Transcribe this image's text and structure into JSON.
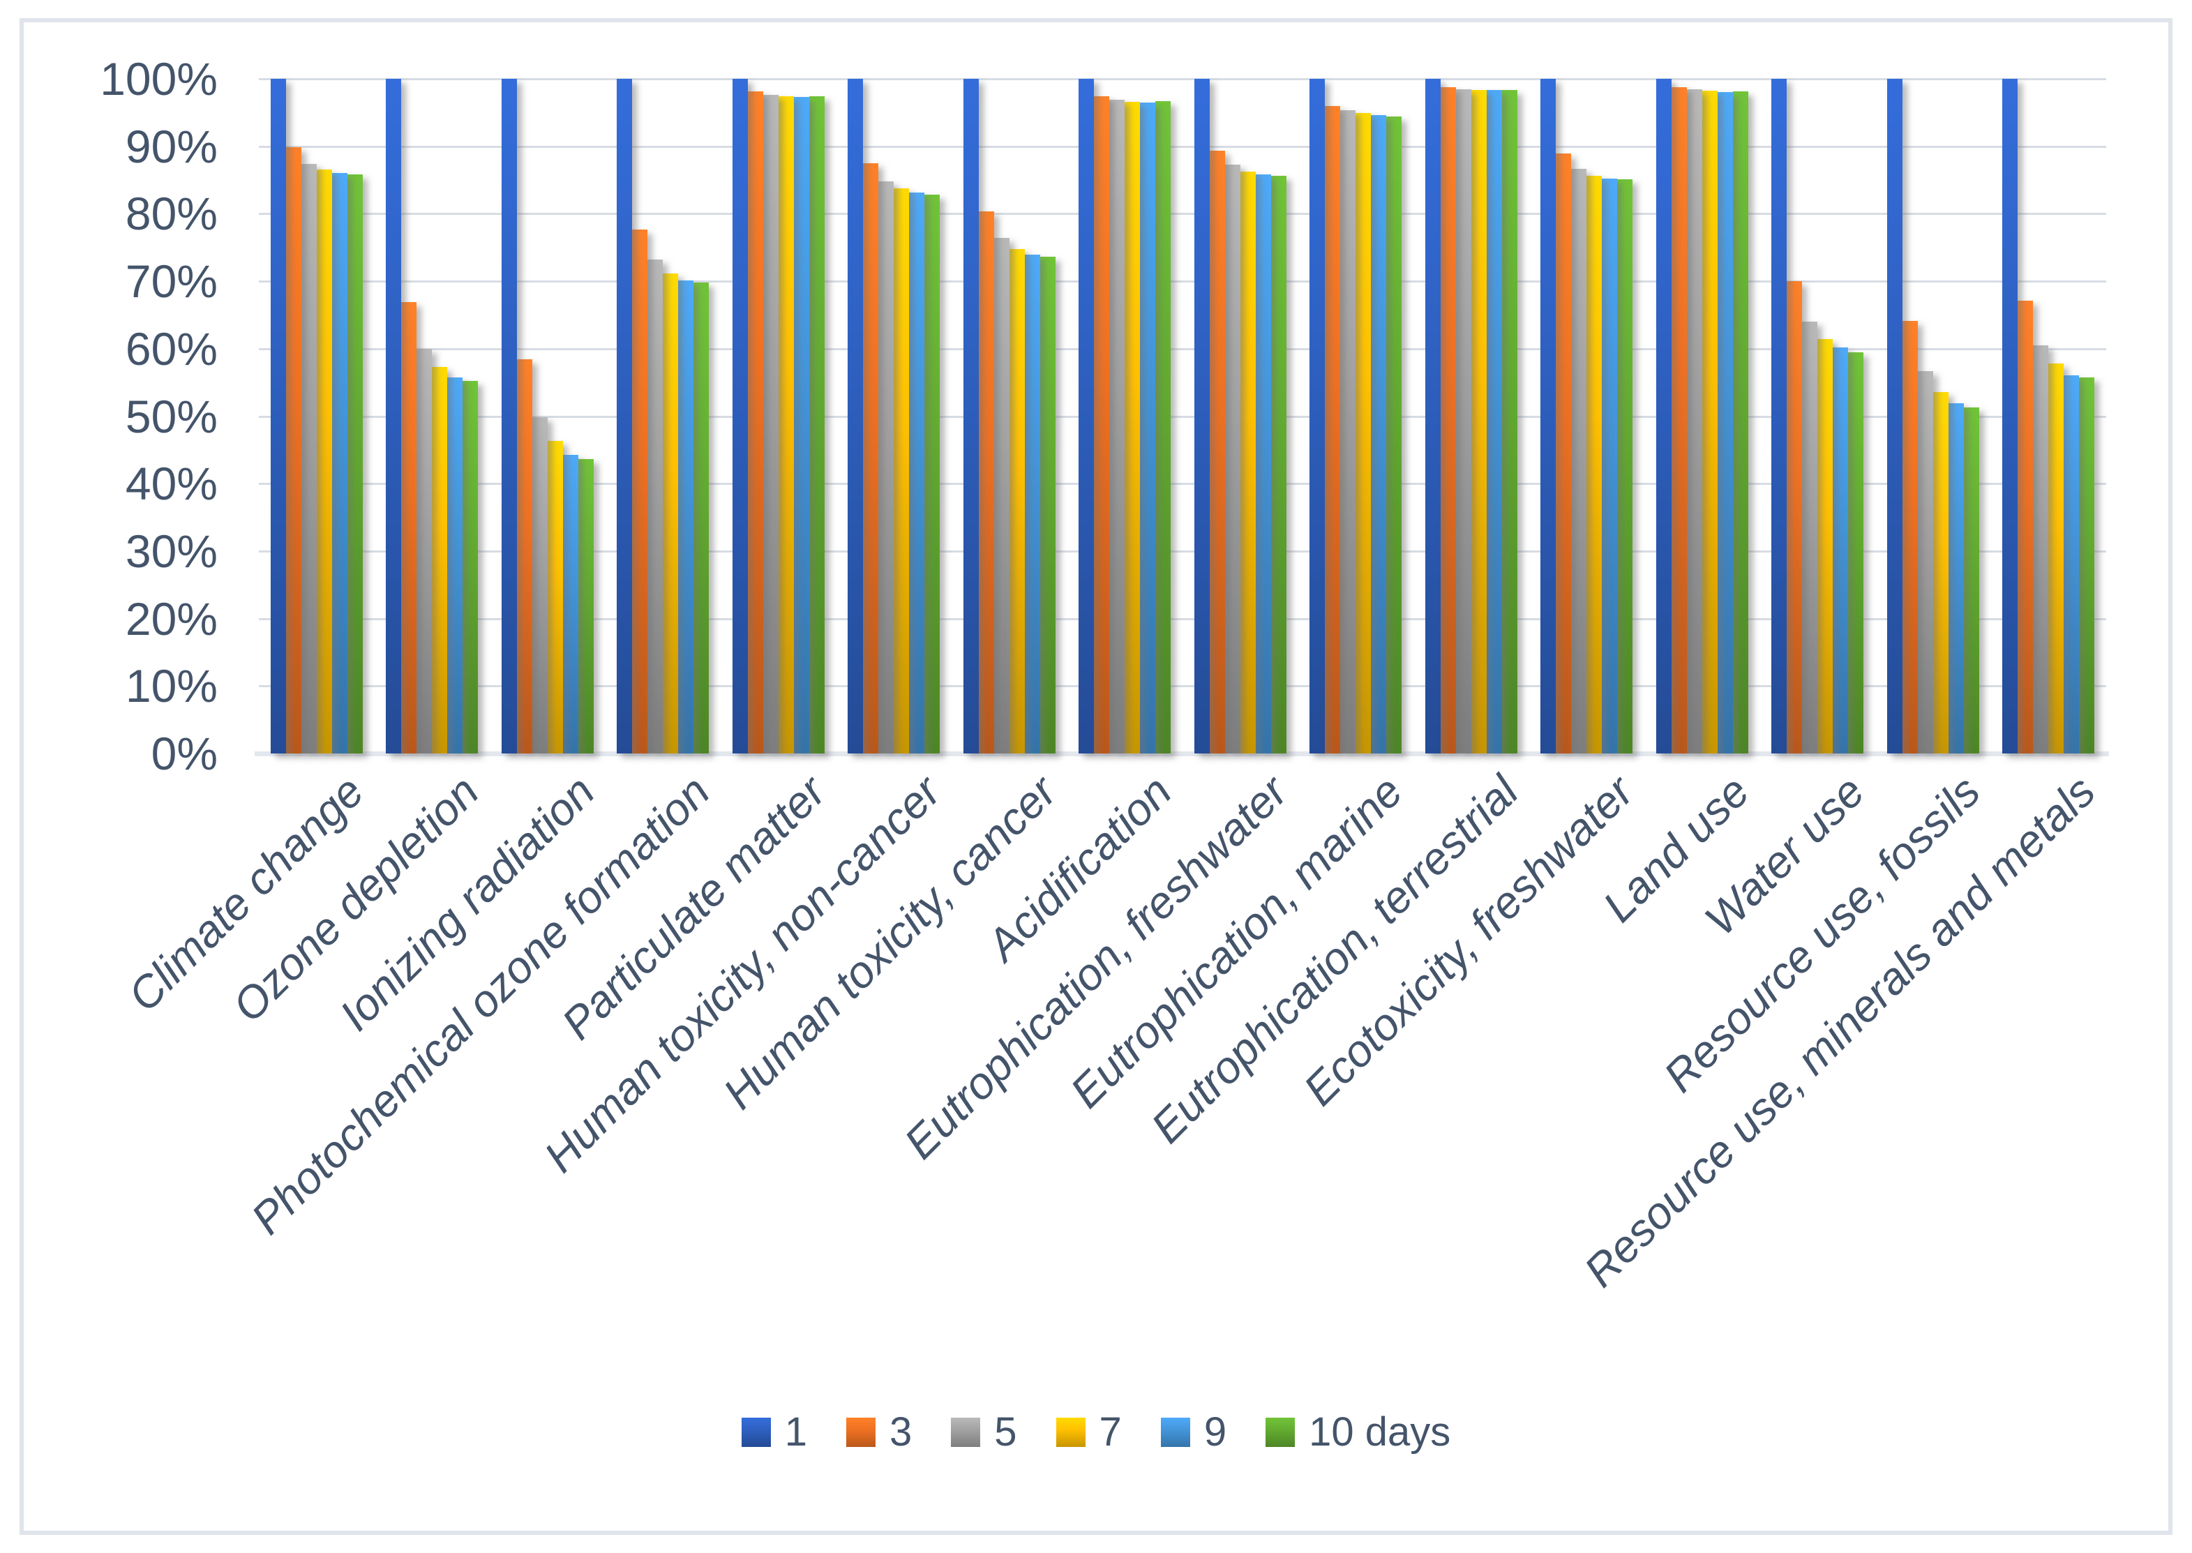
{
  "chart_data": {
    "type": "bar",
    "title": "",
    "xlabel": "",
    "ylabel": "",
    "ylim": [
      0,
      100
    ],
    "grid": true,
    "legend_position": "bottom",
    "yticks": [
      "0%",
      "10%",
      "20%",
      "30%",
      "40%",
      "50%",
      "60%",
      "70%",
      "80%",
      "90%",
      "100%"
    ],
    "categories": [
      "Climate change",
      "Ozone depletion",
      "Ionizing radiation",
      "Photochemical ozone formation",
      "Particulate matter",
      "Human toxicity, non-cancer",
      "Human toxicity, cancer",
      "Acidification",
      "Eutrophication, freshwater",
      "Eutrophication, marine",
      "Eutrophication, terrestrial",
      "Ecotoxicity, freshwater",
      "Land use",
      "Water use",
      "Resource use, fossils",
      "Resource use, minerals and metals"
    ],
    "series": [
      {
        "name": "1",
        "color": "#2E60C0",
        "values": [
          100,
          100,
          100,
          100,
          100,
          100,
          100,
          100,
          100,
          100,
          100,
          100,
          100,
          100,
          100,
          100
        ]
      },
      {
        "name": "3",
        "color": "#EE7123",
        "values": [
          89.9,
          66.9,
          58.4,
          77.7,
          98.1,
          87.5,
          80.4,
          97.4,
          89.4,
          96.0,
          98.8,
          88.9,
          98.8,
          70.0,
          64.1,
          67.1
        ]
      },
      {
        "name": "5",
        "color": "#A2A2A2",
        "values": [
          87.4,
          60.0,
          49.8,
          73.2,
          97.6,
          84.8,
          76.4,
          96.9,
          87.3,
          95.3,
          98.5,
          86.7,
          98.4,
          64.0,
          56.7,
          60.5
        ]
      },
      {
        "name": "7",
        "color": "#FFC000",
        "values": [
          86.6,
          57.3,
          46.3,
          71.2,
          97.4,
          83.8,
          74.8,
          96.6,
          86.2,
          94.9,
          98.3,
          85.6,
          98.2,
          61.4,
          53.6,
          57.8
        ]
      },
      {
        "name": "9",
        "color": "#4495DA",
        "values": [
          86.0,
          55.7,
          44.3,
          70.1,
          97.3,
          83.1,
          73.9,
          96.5,
          85.8,
          94.6,
          98.3,
          85.2,
          98.0,
          60.2,
          51.9,
          56.1
        ]
      },
      {
        "name": "10 days",
        "color": "#63AC31",
        "values": [
          85.8,
          55.2,
          43.6,
          69.8,
          97.4,
          82.8,
          73.6,
          96.7,
          85.6,
          94.4,
          98.3,
          85.1,
          98.1,
          59.5,
          51.3,
          55.7
        ]
      }
    ]
  },
  "colors": {
    "text": "#44546A",
    "gridline": "#D7DCE4",
    "baseline": "#E3E7EE",
    "frame_border": "#E0E4EB",
    "background": "#FFFFFF"
  }
}
